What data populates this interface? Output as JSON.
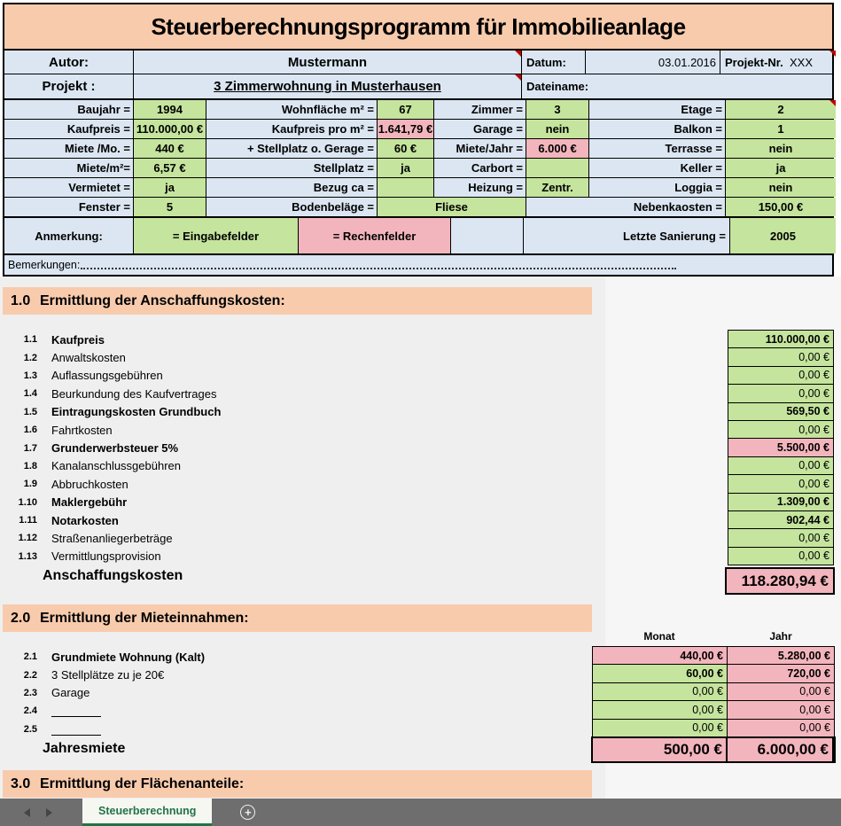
{
  "title": "Steuerberechnungsprogramm für Immobilieanlage",
  "header": {
    "autor_label": "Autor:",
    "autor_value": "Mustermann",
    "datum_label": "Datum:",
    "datum_value": "03.01.2016",
    "projektnr_label": "Projekt-Nr.",
    "projektnr_value": "XXX",
    "projekt_label": "Projekt :",
    "projekt_value": "3 Zimmerwohnung in Musterhausen",
    "dateiname_label": "Dateiname:"
  },
  "property_grid": {
    "rows": [
      {
        "cells": [
          {
            "label": "Baujahr =",
            "value": "1994",
            "type": "in"
          },
          {
            "label": "Wohnfläche m² =",
            "value": "67",
            "type": "in"
          },
          {
            "label": "Zimmer =",
            "value": "3",
            "type": "in"
          },
          {
            "label": "Etage =",
            "value": "2",
            "type": "in",
            "comment": true
          }
        ]
      },
      {
        "cells": [
          {
            "label": "Kaufpreis =",
            "value": "110.000,00 €",
            "type": "in"
          },
          {
            "label": "Kaufpreis pro m² =",
            "value": "1.641,79 €",
            "type": "calc"
          },
          {
            "label": "Garage =",
            "value": "nein",
            "type": "in"
          },
          {
            "label": "Balkon =",
            "value": "1",
            "type": "in"
          }
        ]
      },
      {
        "cells": [
          {
            "label": "Miete /Mo. =",
            "value": "440 €",
            "type": "in"
          },
          {
            "label": "+ Stellplatz o. Gerage =",
            "value": "60 €",
            "type": "in"
          },
          {
            "label": "Miete/Jahr =",
            "value": "6.000 €",
            "type": "calc"
          },
          {
            "label": "Terrasse =",
            "value": "nein",
            "type": "in"
          }
        ]
      },
      {
        "cells": [
          {
            "label": "Miete/m²=",
            "value": "6,57 €",
            "type": "in"
          },
          {
            "label": "Stellplatz =",
            "value": "ja",
            "type": "in"
          },
          {
            "label": "Carbort =",
            "value": "",
            "type": "in"
          },
          {
            "label": "Keller =",
            "value": "ja",
            "type": "in"
          }
        ]
      },
      {
        "cells": [
          {
            "label": "Vermietet =",
            "value": "ja",
            "type": "in"
          },
          {
            "label": "Bezug ca =",
            "value": "",
            "type": "in"
          },
          {
            "label": "Heizung =",
            "value": "Zentr.",
            "type": "in"
          },
          {
            "label": "Loggia =",
            "value": "nein",
            "type": "in"
          }
        ]
      }
    ],
    "last_row": {
      "label1": "Fenster =",
      "value1": "5",
      "label2": "Bodenbeläge =",
      "value2": "Fliese",
      "label3": "Nebenkaosten =",
      "value3": "150,00 €"
    }
  },
  "legend": {
    "anmerkung_label": "Anmerkung:",
    "eingabe_label": "=  Eingabefelder",
    "rechen_label": "=  Rechenfelder",
    "sanierung_label": "Letzte Sanierung =",
    "sanierung_value": "2005"
  },
  "bemerkungen_label": "Bemerkungen:",
  "sections": {
    "s1": {
      "number": "1.0",
      "title": "Ermittlung der Anschaffungskosten:",
      "items": [
        {
          "num": "1.1",
          "label": "Kaufpreis",
          "bold": true,
          "value": "110.000,00 €",
          "type": "in",
          "value_bold": true
        },
        {
          "num": "1.2",
          "label": "Anwaltskosten",
          "bold": false,
          "value": "0,00 €",
          "type": "in",
          "value_bold": false
        },
        {
          "num": "1.3",
          "label": "Auflassungsgebühren",
          "bold": false,
          "value": "0,00 €",
          "type": "in",
          "value_bold": false
        },
        {
          "num": "1.4",
          "label": "Beurkundung des Kaufvertrages",
          "bold": false,
          "value": "0,00 €",
          "type": "in",
          "value_bold": false
        },
        {
          "num": "1.5",
          "label": "Eintragungskosten Grundbuch",
          "bold": true,
          "value": "569,50 €",
          "type": "in",
          "value_bold": true
        },
        {
          "num": "1.6",
          "label": "Fahrtkosten",
          "bold": false,
          "value": "0,00 €",
          "type": "in",
          "value_bold": false
        },
        {
          "num": "1.7",
          "label": "Grunderwerbsteuer 5%",
          "bold": true,
          "value": "5.500,00 €",
          "type": "calc",
          "value_bold": true
        },
        {
          "num": "1.8",
          "label": "Kanalanschlussgebühren",
          "bold": false,
          "value": "0,00 €",
          "type": "in",
          "value_bold": false
        },
        {
          "num": "1.9",
          "label": "Abbruchkosten",
          "bold": false,
          "value": "0,00 €",
          "type": "in",
          "value_bold": false
        },
        {
          "num": "1.10",
          "label": "Maklergebühr",
          "bold": true,
          "value": "1.309,00 €",
          "type": "in",
          "value_bold": true
        },
        {
          "num": "1.11",
          "label": "Notarkosten",
          "bold": true,
          "value": "902,44 €",
          "type": "in",
          "value_bold": true
        },
        {
          "num": "1.12",
          "label": "Straßenanliegerbeträge",
          "bold": false,
          "value": "0,00 €",
          "type": "in",
          "value_bold": false
        },
        {
          "num": "1.13",
          "label": "Vermittlungsprovision",
          "bold": false,
          "value": "0,00 €",
          "type": "in",
          "value_bold": false
        }
      ],
      "total_label": "Anschaffungskosten",
      "total_value": "118.280,94 €"
    },
    "s2": {
      "number": "2.0",
      "title": "Ermittlung der Mieteinnahmen:",
      "monat_header": "Monat",
      "jahr_header": "Jahr",
      "items": [
        {
          "num": "2.1",
          "label": "Grundmiete Wohnung (Kalt)",
          "bold": true,
          "blank": false,
          "monat": "440,00 €",
          "monat_type": "calc",
          "monat_bold": true,
          "jahr": "5.280,00 €",
          "jahr_type": "calc",
          "jahr_bold": true
        },
        {
          "num": "2.2",
          "label": "3 Stellplätze zu je 20€",
          "bold": false,
          "blank": false,
          "monat": "60,00 €",
          "monat_type": "in",
          "monat_bold": true,
          "jahr": "720,00 €",
          "jahr_type": "calc",
          "jahr_bold": true
        },
        {
          "num": "2.3",
          "label": "Garage",
          "bold": false,
          "blank": false,
          "monat": "0,00 €",
          "monat_type": "in",
          "monat_bold": false,
          "jahr": "0,00 €",
          "jahr_type": "calc",
          "jahr_bold": false
        },
        {
          "num": "2.4",
          "label": "",
          "bold": false,
          "blank": true,
          "monat": "0,00 €",
          "monat_type": "in",
          "monat_bold": false,
          "jahr": "0,00 €",
          "jahr_type": "calc",
          "jahr_bold": false
        },
        {
          "num": "2.5",
          "label": "",
          "bold": false,
          "blank": true,
          "monat": "0,00 €",
          "monat_type": "in",
          "monat_bold": false,
          "jahr": "0,00 €",
          "jahr_type": "calc",
          "jahr_bold": false
        }
      ],
      "total_label": "Jahresmiete",
      "total_monat": "500,00 €",
      "total_jahr": "6.000,00 €"
    },
    "s3": {
      "number": "3.0",
      "title": "Ermittlung der Flächenanteile:"
    }
  },
  "tabbar": {
    "tab_label": "Steuerberechnung",
    "add_label": "+"
  },
  "colors": {
    "input_cell": "#c5e49d",
    "calc_cell": "#f3b5bd",
    "accent_band": "#f8cbad",
    "header_blue": "#dbe6f2",
    "tab_green": "#217346",
    "comment_red": "#c00000"
  }
}
